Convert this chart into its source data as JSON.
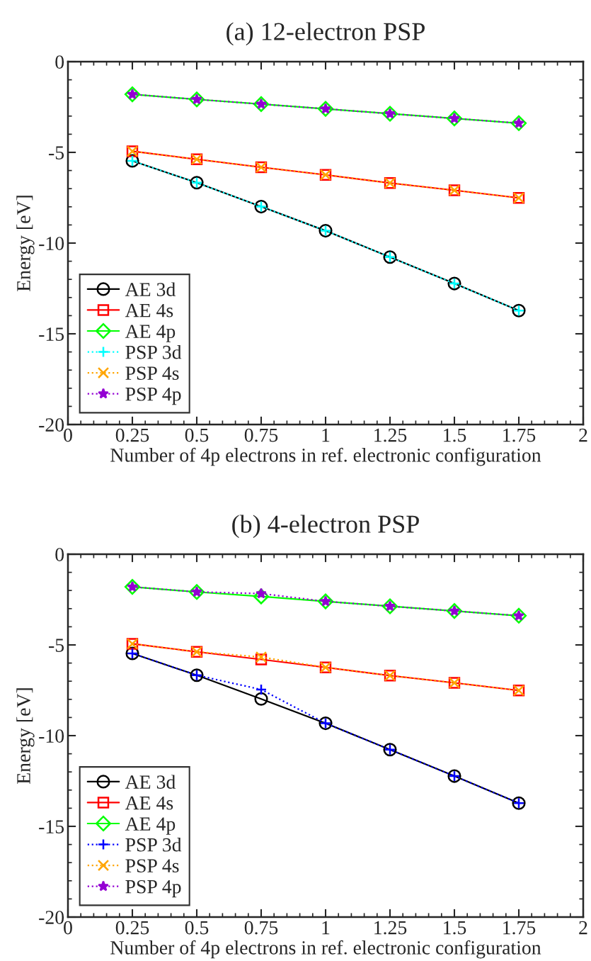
{
  "chart_data": [
    {
      "type": "line",
      "title": "(a) 12-electron PSP",
      "xlabel": "Number of 4p electrons in ref. electronic configuration",
      "ylabel": "Energy [eV]",
      "x": [
        0.25,
        0.5,
        0.75,
        1,
        1.25,
        1.5,
        1.75
      ],
      "xlim": [
        0,
        2
      ],
      "xticks": [
        0,
        0.25,
        0.5,
        0.75,
        1,
        1.25,
        1.5,
        1.75,
        2
      ],
      "ylim": [
        -20,
        0
      ],
      "yticks": [
        -20,
        -15,
        -10,
        -5,
        0
      ],
      "grid": false,
      "legend": "bottom left",
      "series": [
        {
          "name": "AE 3d",
          "color": "#000000",
          "marker": "circle",
          "line_style": "solid",
          "values": [
            -5.47,
            -6.67,
            -7.99,
            -9.32,
            -10.77,
            -12.23,
            -13.72
          ]
        },
        {
          "name": "AE 4s",
          "color": "#ff0000",
          "marker": "square",
          "line_style": "solid",
          "values": [
            -4.94,
            -5.38,
            -5.82,
            -6.24,
            -6.69,
            -7.09,
            -7.51
          ]
        },
        {
          "name": "AE 4p",
          "color": "#00ff00",
          "marker": "diamond",
          "line_style": "solid",
          "values": [
            -1.8,
            -2.08,
            -2.34,
            -2.6,
            -2.87,
            -3.13,
            -3.39
          ]
        },
        {
          "name": "PSP 3d",
          "color": "#00ffff",
          "marker": "plus",
          "line_style": "dotted",
          "values": [
            -5.47,
            -6.67,
            -7.99,
            -9.32,
            -10.77,
            -12.23,
            -13.72
          ]
        },
        {
          "name": "PSP 4s",
          "color": "#ffa500",
          "marker": "cross",
          "line_style": "dotted",
          "values": [
            -4.94,
            -5.38,
            -5.82,
            -6.24,
            -6.69,
            -7.09,
            -7.51
          ]
        },
        {
          "name": "PSP 4p",
          "color": "#9400d3",
          "marker": "star",
          "line_style": "dotted",
          "values": [
            -1.8,
            -2.08,
            -2.34,
            -2.6,
            -2.87,
            -3.13,
            -3.39
          ]
        }
      ]
    },
    {
      "type": "line",
      "title": "(b) 4-electron PSP",
      "xlabel": "Number of 4p electrons in ref. electronic configuration",
      "ylabel": "Energy [eV]",
      "x": [
        0.25,
        0.5,
        0.75,
        1,
        1.25,
        1.5,
        1.75
      ],
      "xlim": [
        0,
        2
      ],
      "xticks": [
        0,
        0.25,
        0.5,
        0.75,
        1,
        1.25,
        1.5,
        1.75,
        2
      ],
      "ylim": [
        -20,
        0
      ],
      "yticks": [
        -20,
        -15,
        -10,
        -5,
        0
      ],
      "grid": false,
      "legend": "bottom left",
      "series": [
        {
          "name": "AE 3d",
          "color": "#000000",
          "marker": "circle",
          "line_style": "solid",
          "values": [
            -5.47,
            -6.67,
            -7.98,
            -9.32,
            -10.77,
            -12.23,
            -13.72
          ]
        },
        {
          "name": "AE 4s",
          "color": "#ff0000",
          "marker": "square",
          "line_style": "solid",
          "values": [
            -4.94,
            -5.38,
            -5.8,
            -6.24,
            -6.69,
            -7.09,
            -7.51
          ]
        },
        {
          "name": "AE 4p",
          "color": "#00ff00",
          "marker": "diamond",
          "line_style": "solid",
          "values": [
            -1.8,
            -2.08,
            -2.33,
            -2.6,
            -2.87,
            -3.13,
            -3.39
          ]
        },
        {
          "name": "PSP 3d",
          "color": "#0000ff",
          "marker": "plus",
          "line_style": "dotted",
          "values": [
            -5.47,
            -6.67,
            -7.46,
            -9.32,
            -10.77,
            -12.23,
            -13.72
          ]
        },
        {
          "name": "PSP 4s",
          "color": "#ffa500",
          "marker": "cross",
          "line_style": "dotted",
          "values": [
            -4.94,
            -5.38,
            -5.67,
            -6.24,
            -6.69,
            -7.09,
            -7.51
          ]
        },
        {
          "name": "PSP 4p",
          "color": "#9400d3",
          "marker": "star",
          "line_style": "dotted",
          "values": [
            -1.8,
            -2.08,
            -2.17,
            -2.6,
            -2.87,
            -3.13,
            -3.39
          ]
        }
      ]
    }
  ]
}
